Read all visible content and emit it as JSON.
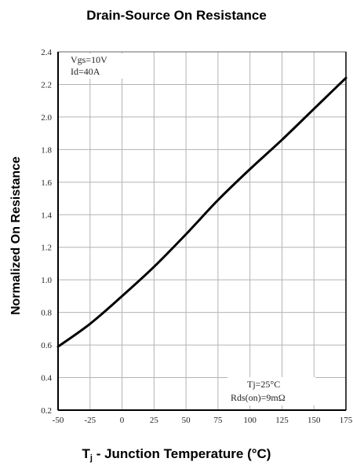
{
  "chart_data": {
    "type": "line",
    "title": "Drain-Source On Resistance",
    "ylabel": "Normalized On Resistance",
    "xlabel_main": "T",
    "xlabel_sub": "j",
    "xlabel_rest": " - Junction Temperature (°C)",
    "xlim": [
      -50,
      175
    ],
    "ylim": [
      0.2,
      2.4
    ],
    "x_ticks": [
      -50,
      -25,
      0,
      25,
      50,
      75,
      100,
      125,
      150,
      175
    ],
    "x_tick_labels": [
      "-50",
      "-25",
      "0",
      "25",
      "50",
      "75",
      "100",
      "125",
      "150",
      "175"
    ],
    "y_ticks": [
      0.2,
      0.4,
      0.6,
      0.8,
      1.0,
      1.2,
      1.4,
      1.6,
      1.8,
      2.0,
      2.2,
      2.4
    ],
    "y_tick_labels": [
      "0.2",
      "0.4",
      "0.6",
      "0.8",
      "1.0",
      "1.2",
      "1.4",
      "1.6",
      "1.8",
      "2.0",
      "2.2",
      "2.4"
    ],
    "grid": true,
    "annotations": {
      "top_left": [
        "Vgs=10V",
        "Id=40A"
      ],
      "bottom_right": [
        "Tj=25°C",
        "Rds(on)=9mΩ"
      ]
    },
    "series": [
      {
        "x": [
          -50,
          -25,
          0,
          25,
          50,
          75,
          100,
          125,
          150,
          175
        ],
        "y": [
          0.59,
          0.73,
          0.9,
          1.08,
          1.28,
          1.49,
          1.68,
          1.86,
          2.05,
          2.24
        ]
      }
    ],
    "colors": {
      "line": "#000000",
      "grid": "#b3b3b3",
      "axes": "#000000"
    }
  }
}
